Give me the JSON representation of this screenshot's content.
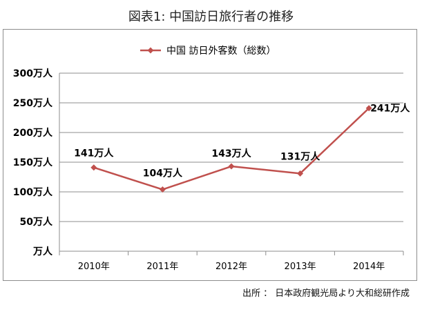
{
  "figure_title": "図表1: 中国訪日旅行者の推移",
  "source_note": "出所 ： 日本政府観光局より大和総研作成",
  "colors": {
    "series": "#c0504d",
    "grid": "#8c8c8c",
    "frame": "#8c8c8c"
  },
  "chart_data": {
    "type": "line",
    "title": "",
    "categories": [
      "2010年",
      "2011年",
      "2012年",
      "2013年",
      "2014年"
    ],
    "series": [
      {
        "name": "中国 訪日外客数（総数）",
        "values": [
          141,
          104,
          143,
          131,
          241
        ],
        "data_labels": [
          "141万人",
          "104万人",
          "143万人",
          "131万人",
          "241万人"
        ],
        "marker": "diamond"
      }
    ],
    "y_ticks": [
      0,
      50,
      100,
      150,
      200,
      250,
      300
    ],
    "y_tick_labels": [
      "万人",
      "50万人",
      "100万人",
      "150万人",
      "200万人",
      "250万人",
      "300万人"
    ],
    "ylim": [
      0,
      300
    ],
    "grid": true,
    "legend_position": "top"
  }
}
